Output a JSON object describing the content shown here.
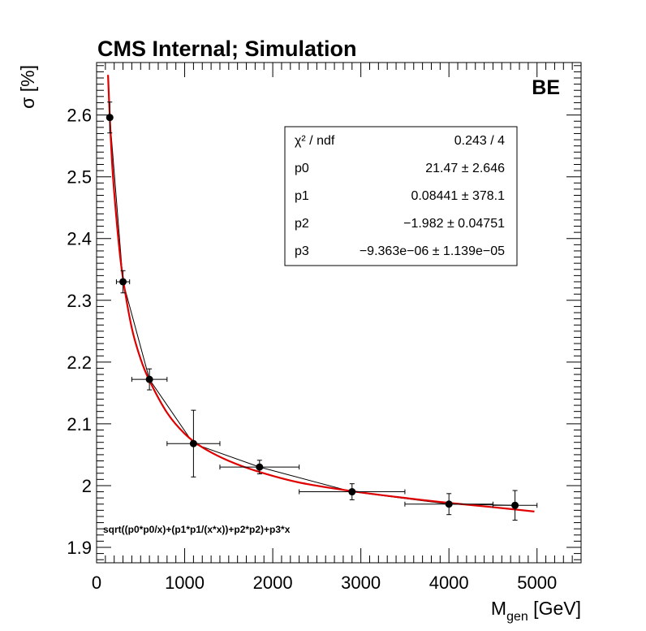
{
  "chart_data": {
    "type": "scatter",
    "title": "CMS Internal; Simulation",
    "region_label": "BE",
    "ylabel": "σ [%]",
    "xlabel_main": "M",
    "xlabel_sub": "gen",
    "xlabel_unit": " [GeV]",
    "xlim": [
      0,
      5500
    ],
    "ylim": [
      1.875,
      2.685
    ],
    "x_ticks": [
      0,
      1000,
      2000,
      3000,
      4000,
      5000
    ],
    "x_tick_labels": [
      "0",
      "1000",
      "2000",
      "3000",
      "4000",
      "5000"
    ],
    "y_ticks": [
      1.9,
      2.0,
      2.1,
      2.2,
      2.3,
      2.4,
      2.5,
      2.6
    ],
    "y_tick_labels": [
      "1.9",
      "2",
      "2.1",
      "2.2",
      "2.3",
      "2.4",
      "2.5",
      "2.6"
    ],
    "grid": false,
    "points": [
      {
        "x": 150,
        "y": 2.596,
        "xerr": 25,
        "yerr": 0.025
      },
      {
        "x": 300,
        "y": 2.33,
        "xerr": 75,
        "yerr": 0.018
      },
      {
        "x": 600,
        "y": 2.172,
        "xerr": 200,
        "yerr": 0.017
      },
      {
        "x": 1100,
        "y": 2.068,
        "xerr": 300,
        "yerr": 0.054
      },
      {
        "x": 1850,
        "y": 2.03,
        "xerr": 450,
        "yerr": 0.011
      },
      {
        "x": 2900,
        "y": 1.99,
        "xerr": 600,
        "yerr": 0.013
      },
      {
        "x": 4000,
        "y": 1.97,
        "xerr": 500,
        "yerr": 0.017
      },
      {
        "x": 4750,
        "y": 1.968,
        "xerr": 250,
        "yerr": 0.024
      }
    ],
    "fit": {
      "formula": "sqrt((p0*p0/x)+(p1*p1/(x*x))+p2*p2)+p3*x",
      "color": "#e00000",
      "x_range": [
        130,
        4970
      ],
      "curve_y": [
        [
          130,
          2.665
        ],
        [
          150,
          2.596
        ],
        [
          175,
          2.525
        ],
        [
          200,
          2.475
        ],
        [
          250,
          2.395
        ],
        [
          300,
          2.335
        ],
        [
          400,
          2.255
        ],
        [
          500,
          2.205
        ],
        [
          600,
          2.17
        ],
        [
          800,
          2.118
        ],
        [
          1000,
          2.084
        ],
        [
          1200,
          2.062
        ],
        [
          1500,
          2.04
        ],
        [
          1850,
          2.022
        ],
        [
          2300,
          2.005
        ],
        [
          2900,
          1.991
        ],
        [
          3500,
          1.98
        ],
        [
          4000,
          1.972
        ],
        [
          4500,
          1.965
        ],
        [
          4970,
          1.958
        ]
      ]
    },
    "stats_box": {
      "rows": [
        {
          "label": "χ² / ndf",
          "value": "0.243 / 4"
        },
        {
          "label": "p0",
          "value": "21.47 ± 2.646"
        },
        {
          "label": "p1",
          "value": "0.08441 ± 378.1"
        },
        {
          "label": "p2",
          "value": "−1.982 ± 0.04751"
        },
        {
          "label": "p3",
          "value": "−9.363e−06 ± 1.139e−05"
        }
      ]
    },
    "colors": {
      "data": "#000000",
      "fit": "#e00000",
      "frame": "#000000"
    }
  }
}
